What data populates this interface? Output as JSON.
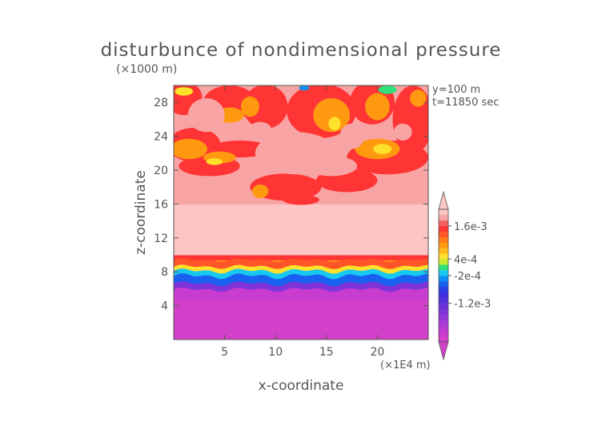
{
  "chart_data": {
    "type": "heatmap",
    "title": "disturbunce of nondimensional pressure",
    "xlabel": "x-coordinate",
    "ylabel": "z-coordinate",
    "x_unit": "(×1E4 m)",
    "y_unit": "(×1000 m)",
    "annotations": [
      "y=100 m",
      "t=11850 sec"
    ],
    "xlim": [
      0,
      25
    ],
    "ylim": [
      0,
      30
    ],
    "x_ticks": [
      5,
      10,
      15,
      20
    ],
    "x_tick_labels": [
      "5",
      "10",
      "15",
      "20"
    ],
    "y_ticks": [
      4,
      8,
      12,
      16,
      20,
      24,
      28
    ],
    "y_tick_labels": [
      "4",
      "8",
      "12",
      "16",
      "20",
      "24",
      "28"
    ],
    "colorbar": {
      "labels": [
        {
          "value": 0.0016,
          "text": "1.6e-3"
        },
        {
          "value": 0.0004,
          "text": "4e-4"
        },
        {
          "value": -0.0002,
          "text": "-2e-4"
        },
        {
          "value": -0.0012,
          "text": "-1.2e-3"
        }
      ],
      "levels": [
        {
          "lo": -0.0026,
          "hi": -0.0024,
          "color": "#d23fc8"
        },
        {
          "lo": -0.0024,
          "hi": -0.0022,
          "color": "#c83cd0"
        },
        {
          "lo": -0.0022,
          "hi": -0.002,
          "color": "#b83ad2"
        },
        {
          "lo": -0.002,
          "hi": -0.0018,
          "color": "#a638d4"
        },
        {
          "lo": -0.0018,
          "hi": -0.0016,
          "color": "#9436d6"
        },
        {
          "lo": -0.0016,
          "hi": -0.0014,
          "color": "#7e34d8"
        },
        {
          "lo": -0.0014,
          "hi": -0.0012,
          "color": "#6a32da"
        },
        {
          "lo": -0.0012,
          "hi": -0.001,
          "color": "#5530dc"
        },
        {
          "lo": -0.001,
          "hi": -0.0008,
          "color": "#402ede"
        },
        {
          "lo": -0.0008,
          "hi": -0.0006,
          "color": "#2a40e6"
        },
        {
          "lo": -0.0006,
          "hi": -0.0004,
          "color": "#1a60f0"
        },
        {
          "lo": -0.0004,
          "hi": -0.0002,
          "color": "#1090f4"
        },
        {
          "lo": -0.0002,
          "hi": 0.0,
          "color": "#18c8f0"
        },
        {
          "lo": 0.0,
          "hi": 0.0002,
          "color": "#30e07a"
        },
        {
          "lo": 0.0002,
          "hi": 0.0004,
          "color": "#c8e830"
        },
        {
          "lo": 0.0004,
          "hi": 0.0006,
          "color": "#ffe02a"
        },
        {
          "lo": 0.0006,
          "hi": 0.0008,
          "color": "#ffbc1a"
        },
        {
          "lo": 0.0008,
          "hi": 0.001,
          "color": "#ff9a10"
        },
        {
          "lo": 0.001,
          "hi": 0.0012,
          "color": "#ff7a18"
        },
        {
          "lo": 0.0012,
          "hi": 0.0014,
          "color": "#ff5528"
        },
        {
          "lo": 0.0014,
          "hi": 0.0016,
          "color": "#ff3434"
        },
        {
          "lo": 0.0016,
          "hi": 0.0018,
          "color": "#f06060"
        },
        {
          "lo": 0.0018,
          "hi": 0.002,
          "color": "#f8a4a4"
        },
        {
          "lo": 0.002,
          "hi": 0.0022,
          "color": "#fcc4c4"
        }
      ],
      "extend": "both"
    },
    "layers": [
      {
        "z": [
          0.0,
          6.0
        ],
        "value": -0.0025,
        "desc": "deep negative (magenta)"
      },
      {
        "z": [
          6.0,
          6.8
        ],
        "value": -0.0015,
        "desc": "purple"
      },
      {
        "z": [
          6.8,
          7.6
        ],
        "value": -0.0007,
        "desc": "blue"
      },
      {
        "z": [
          7.6,
          8.2
        ],
        "value": -0.0001,
        "desc": "cyan"
      },
      {
        "z": [
          8.2,
          8.6
        ],
        "value": 0.0001,
        "desc": "green"
      },
      {
        "z": [
          8.6,
          9.0
        ],
        "value": 0.0005,
        "desc": "yellow"
      },
      {
        "z": [
          9.0,
          9.4
        ],
        "value": 0.0009,
        "desc": "orange"
      },
      {
        "z": [
          9.4,
          10.0
        ],
        "value": 0.0015,
        "desc": "red"
      },
      {
        "z": [
          10.0,
          16.0
        ],
        "value": 0.0021,
        "desc": "light pink"
      },
      {
        "z": [
          16.0,
          30.0
        ],
        "value": 0.0019,
        "desc": "pink with red/orange/yellow patches"
      }
    ],
    "colors": {
      "axis": "#555555",
      "frame": "#555555"
    }
  }
}
